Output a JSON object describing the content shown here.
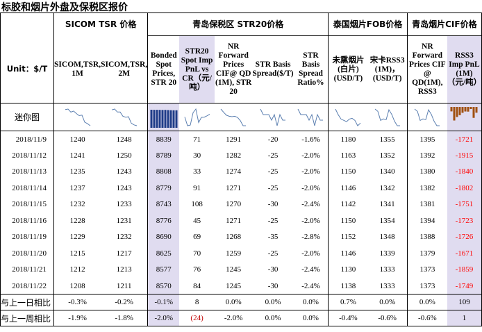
{
  "title": "标胶和烟片外盘及保税区报价",
  "groups": {
    "sicom": "SICOM TSR 价格",
    "qingdao_str20": "青岛保税区 STR20价格",
    "thai_fob": "泰国烟片FOB价格",
    "qingdao_cif": "青岛烟片CIF价格"
  },
  "unit_label": "Unit：$/T",
  "mini_chart_label": "迷你图",
  "columns": [
    "SICOM,TSR, 1M",
    "SICOM,TSR, 2M",
    "Bonded Spot Prices, STR 20",
    "STR20 Spot Imp PnL vs CR（元/吨）",
    "NR Forward Prices CIF@ QD (1M), STR 20",
    "STR Basis Spread($/T)",
    "STR Basis Spread Ratio%",
    "未熏烟片(白片)(USD/T)",
    "宋卡RSS3 (1M)，(USD/T)",
    "NR Forward Prices CIF @ QD(1M), RSS3",
    "RSS3 Imp PnL (1M)（元/吨）"
  ],
  "rows": [
    {
      "date": "2018/11/9",
      "values": [
        "1240",
        "1248",
        "8839",
        "71",
        "1291",
        "-20",
        "-1.6%",
        "1180",
        "1355",
        "1395",
        "-1721"
      ]
    },
    {
      "date": "2018/11/12",
      "values": [
        "1241",
        "1250",
        "8789",
        "30",
        "1282",
        "-25",
        "-2.0%",
        "1163",
        "1352",
        "1392",
        "-1915"
      ]
    },
    {
      "date": "2018/11/13",
      "values": [
        "1235",
        "1243",
        "8808",
        "33",
        "1274",
        "-25",
        "-2.0%",
        "1150",
        "1340",
        "1380",
        "-1840"
      ]
    },
    {
      "date": "2018/11/14",
      "values": [
        "1237",
        "1243",
        "8779",
        "91",
        "1271",
        "-25",
        "-2.0%",
        "1146",
        "1342",
        "1382",
        "-1802"
      ]
    },
    {
      "date": "2018/11/15",
      "values": [
        "1232",
        "1233",
        "8743",
        "108",
        "1270",
        "-30",
        "-2.4%",
        "1142",
        "1341",
        "1381",
        "-1751"
      ]
    },
    {
      "date": "2018/11/16",
      "values": [
        "1228",
        "1231",
        "8776",
        "45",
        "1271",
        "-25",
        "-2.0%",
        "1150",
        "1354",
        "1394",
        "-1723"
      ]
    },
    {
      "date": "2018/11/19",
      "values": [
        "1229",
        "1232",
        "8690",
        "69",
        "1268",
        "-35",
        "-2.8%",
        "1152",
        "1348",
        "1388",
        "-1726"
      ]
    },
    {
      "date": "2018/11/20",
      "values": [
        "1215",
        "1217",
        "8625",
        "70",
        "1259",
        "-25",
        "-2.0%",
        "1146",
        "1339",
        "1379",
        "-1671"
      ]
    },
    {
      "date": "2018/11/21",
      "values": [
        "1212",
        "1213",
        "8577",
        "76",
        "1245",
        "-30",
        "-2.4%",
        "1130",
        "1333",
        "1373",
        "-1859"
      ]
    },
    {
      "date": "2018/11/22",
      "values": [
        "1208",
        "1211",
        "8570",
        "84",
        "1245",
        "-30",
        "-2.4%",
        "1138",
        "1333",
        "1373",
        "-1749"
      ]
    }
  ],
  "change_rows": [
    {
      "label": "与上一日相比",
      "values": [
        "-0.3%",
        "-0.2%",
        "-0.1%",
        "8",
        "0.0%",
        "0.0%",
        "0.0%",
        "0.7%",
        "0.0%",
        "0.0%",
        "109"
      ]
    },
    {
      "label": "与上一周相比",
      "values": [
        "-1.9%",
        "-1.8%",
        "-2.0%",
        "(24)",
        "-2.0%",
        "0.0%",
        "0.0%",
        "-0.4%",
        "-0.6%",
        "-0.6%",
        "1"
      ]
    }
  ],
  "colors": {
    "highlight": "#e0dcf0",
    "sparkline": "#5b7fb0",
    "bars": "#1f3c88",
    "neg_bars": "#a05010",
    "negative_text": "#ff0000"
  }
}
